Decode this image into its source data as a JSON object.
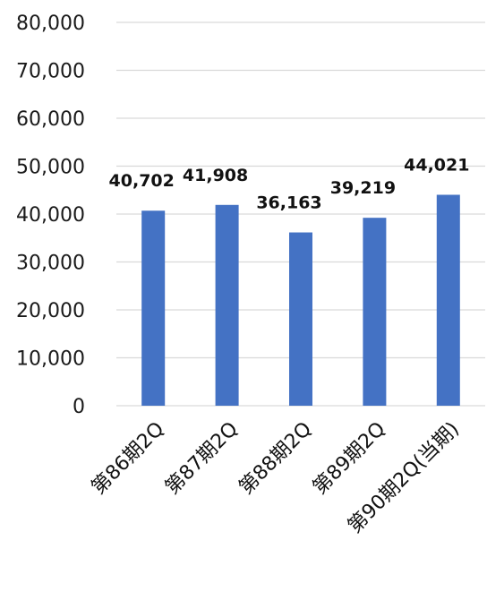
{
  "chart_data": {
    "type": "bar",
    "title": "",
    "xlabel": "",
    "ylabel": "",
    "categories": [
      "第86期2Q",
      "第87期2Q",
      "第88期2Q",
      "第89期2Q",
      "第90期2Q(当期)"
    ],
    "values": [
      40702,
      41908,
      36163,
      39219,
      44021
    ],
    "value_labels": [
      "40,702",
      "41,908",
      "36,163",
      "39,219",
      "44,021"
    ],
    "ylim": [
      0,
      80000
    ],
    "y_ticks": [
      0,
      10000,
      20000,
      30000,
      40000,
      50000,
      60000,
      70000,
      80000
    ],
    "y_tick_labels": [
      "0",
      "10,000",
      "20,000",
      "30,000",
      "40,000",
      "50,000",
      "60,000",
      "70,000",
      "80,000"
    ],
    "grid": true,
    "legend": "none",
    "bar_color": "#4472C4",
    "grid_color": "#d9d9d9"
  }
}
